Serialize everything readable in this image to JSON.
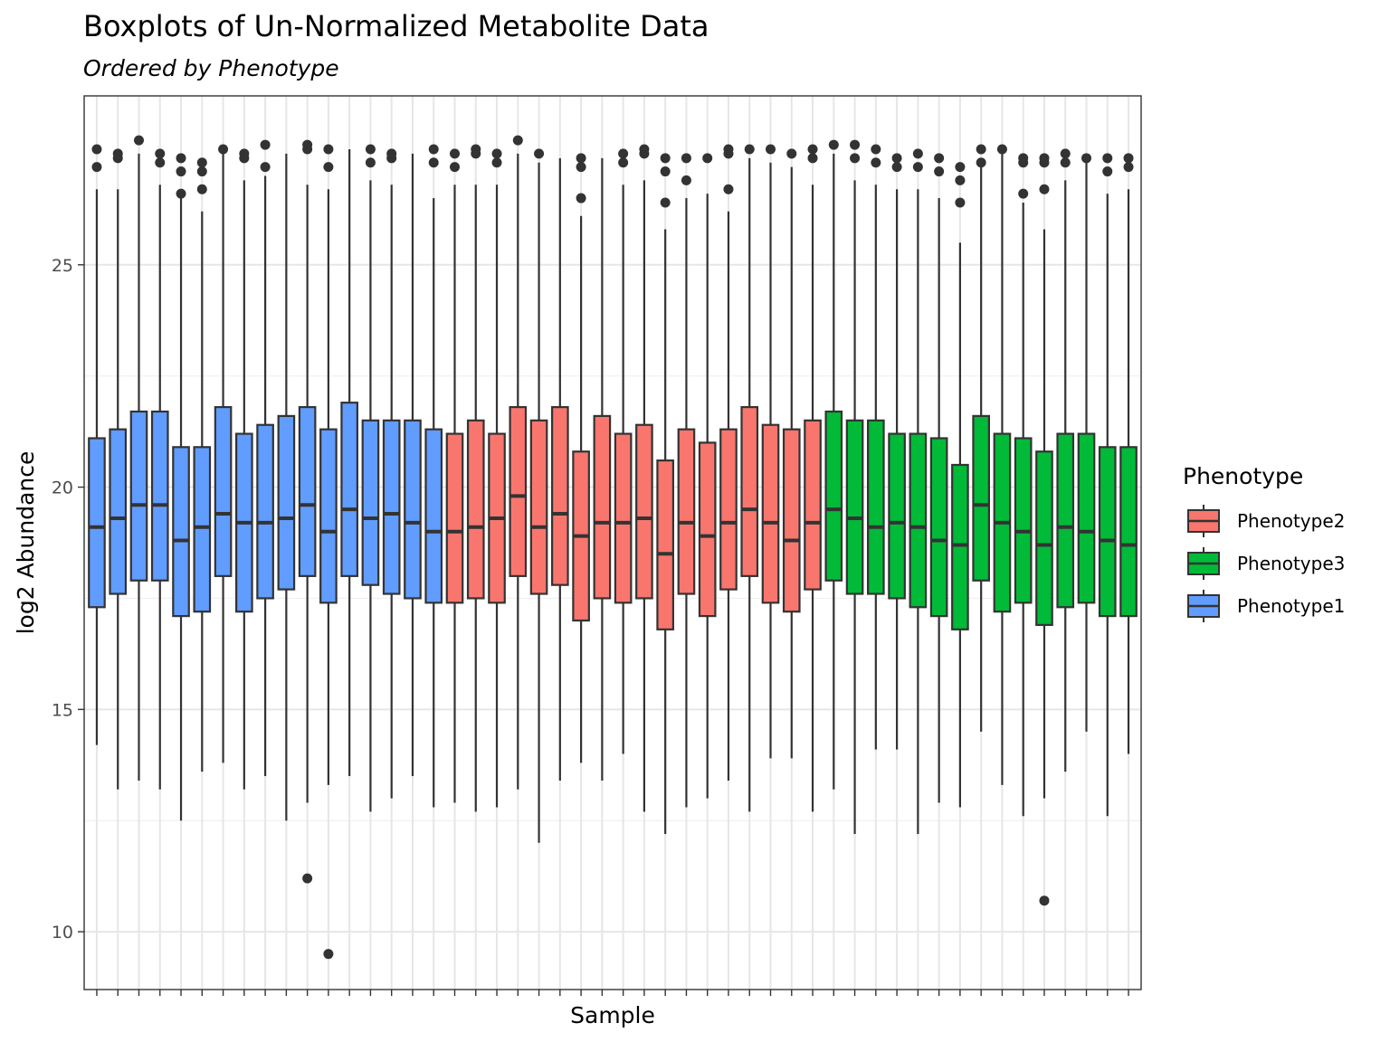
{
  "chart_data": {
    "type": "boxplot",
    "title": "Boxplots of Un-Normalized Metabolite Data",
    "subtitle": "Ordered by  Phenotype",
    "xlabel": "Sample",
    "ylabel": "log2 Abundance",
    "ylim": [
      8.7,
      28.8
    ],
    "yticks": [
      10,
      15,
      20,
      25
    ],
    "grid": true,
    "legend": {
      "title": "Phenotype",
      "position": "right",
      "entries": [
        {
          "label": "Phenotype2",
          "color": "#F8766D"
        },
        {
          "label": "Phenotype3",
          "color": "#00BA38"
        },
        {
          "label": "Phenotype1",
          "color": "#619CFF"
        }
      ]
    },
    "colors": {
      "Phenotype1": "#619CFF",
      "Phenotype2": "#F8766D",
      "Phenotype3": "#00BA38"
    },
    "boxes": [
      {
        "group": "Phenotype1",
        "whisker_low": 14.2,
        "q1": 17.3,
        "median": 19.1,
        "q3": 21.1,
        "whisker_high": 26.7,
        "outliers": [
          27.6,
          27.2
        ]
      },
      {
        "group": "Phenotype1",
        "whisker_low": 13.2,
        "q1": 17.6,
        "median": 19.3,
        "q3": 21.3,
        "whisker_high": 26.7,
        "outliers": [
          27.5,
          27.4
        ]
      },
      {
        "group": "Phenotype1",
        "whisker_low": 13.4,
        "q1": 17.9,
        "median": 19.6,
        "q3": 21.7,
        "whisker_high": 27.5,
        "outliers": [
          27.8
        ]
      },
      {
        "group": "Phenotype1",
        "whisker_low": 13.2,
        "q1": 17.9,
        "median": 19.6,
        "q3": 21.7,
        "whisker_high": 26.8,
        "outliers": [
          27.5,
          27.3
        ]
      },
      {
        "group": "Phenotype1",
        "whisker_low": 12.5,
        "q1": 17.1,
        "median": 18.8,
        "q3": 20.9,
        "whisker_high": 26.5,
        "outliers": [
          27.4,
          27.1,
          26.6
        ]
      },
      {
        "group": "Phenotype1",
        "whisker_low": 13.6,
        "q1": 17.2,
        "median": 19.1,
        "q3": 20.9,
        "whisker_high": 26.2,
        "outliers": [
          27.3,
          27.1,
          26.7
        ]
      },
      {
        "group": "Phenotype1",
        "whisker_low": 13.8,
        "q1": 18.0,
        "median": 19.4,
        "q3": 21.8,
        "whisker_high": 27.5,
        "outliers": [
          27.6
        ]
      },
      {
        "group": "Phenotype1",
        "whisker_low": 13.2,
        "q1": 17.2,
        "median": 19.2,
        "q3": 21.2,
        "whisker_high": 26.9,
        "outliers": [
          27.5,
          27.4
        ]
      },
      {
        "group": "Phenotype1",
        "whisker_low": 13.5,
        "q1": 17.5,
        "median": 19.2,
        "q3": 21.4,
        "whisker_high": 27.0,
        "outliers": [
          27.7,
          27.2
        ]
      },
      {
        "group": "Phenotype1",
        "whisker_low": 12.5,
        "q1": 17.7,
        "median": 19.3,
        "q3": 21.6,
        "whisker_high": 27.5,
        "outliers": []
      },
      {
        "group": "Phenotype1",
        "whisker_low": 12.9,
        "q1": 18.0,
        "median": 19.6,
        "q3": 21.8,
        "whisker_high": 26.8,
        "outliers": [
          27.7,
          27.6,
          11.2
        ]
      },
      {
        "group": "Phenotype1",
        "whisker_low": 13.3,
        "q1": 17.4,
        "median": 19.0,
        "q3": 21.3,
        "whisker_high": 26.7,
        "outliers": [
          27.6,
          27.2,
          9.5
        ]
      },
      {
        "group": "Phenotype1",
        "whisker_low": 13.5,
        "q1": 18.0,
        "median": 19.5,
        "q3": 21.9,
        "whisker_high": 27.6,
        "outliers": []
      },
      {
        "group": "Phenotype1",
        "whisker_low": 12.7,
        "q1": 17.8,
        "median": 19.3,
        "q3": 21.5,
        "whisker_high": 26.9,
        "outliers": [
          27.6,
          27.3
        ]
      },
      {
        "group": "Phenotype1",
        "whisker_low": 13.0,
        "q1": 17.6,
        "median": 19.4,
        "q3": 21.5,
        "whisker_high": 26.8,
        "outliers": [
          27.5,
          27.4
        ]
      },
      {
        "group": "Phenotype1",
        "whisker_low": 13.5,
        "q1": 17.5,
        "median": 19.2,
        "q3": 21.5,
        "whisker_high": 27.5,
        "outliers": []
      },
      {
        "group": "Phenotype1",
        "whisker_low": 12.8,
        "q1": 17.4,
        "median": 19.0,
        "q3": 21.3,
        "whisker_high": 26.5,
        "outliers": [
          27.6,
          27.3
        ]
      },
      {
        "group": "Phenotype2",
        "whisker_low": 12.9,
        "q1": 17.4,
        "median": 19.0,
        "q3": 21.2,
        "whisker_high": 26.8,
        "outliers": [
          27.5,
          27.2
        ]
      },
      {
        "group": "Phenotype2",
        "whisker_low": 12.7,
        "q1": 17.5,
        "median": 19.1,
        "q3": 21.5,
        "whisker_high": 26.8,
        "outliers": [
          27.6,
          27.5
        ]
      },
      {
        "group": "Phenotype2",
        "whisker_low": 12.8,
        "q1": 17.4,
        "median": 19.3,
        "q3": 21.2,
        "whisker_high": 26.8,
        "outliers": [
          27.5,
          27.3
        ]
      },
      {
        "group": "Phenotype2",
        "whisker_low": 13.2,
        "q1": 18.0,
        "median": 19.8,
        "q3": 21.8,
        "whisker_high": 27.5,
        "outliers": [
          27.8
        ]
      },
      {
        "group": "Phenotype2",
        "whisker_low": 12.0,
        "q1": 17.6,
        "median": 19.1,
        "q3": 21.5,
        "whisker_high": 27.3,
        "outliers": [
          27.5
        ]
      },
      {
        "group": "Phenotype2",
        "whisker_low": 13.4,
        "q1": 17.8,
        "median": 19.4,
        "q3": 21.8,
        "whisker_high": 27.4,
        "outliers": []
      },
      {
        "group": "Phenotype2",
        "whisker_low": 13.8,
        "q1": 17.0,
        "median": 18.9,
        "q3": 20.8,
        "whisker_high": 26.1,
        "outliers": [
          27.4,
          27.2,
          26.5
        ]
      },
      {
        "group": "Phenotype2",
        "whisker_low": 13.4,
        "q1": 17.5,
        "median": 19.2,
        "q3": 21.6,
        "whisker_high": 27.4,
        "outliers": []
      },
      {
        "group": "Phenotype2",
        "whisker_low": 14.0,
        "q1": 17.4,
        "median": 19.2,
        "q3": 21.2,
        "whisker_high": 26.8,
        "outliers": [
          27.5,
          27.3
        ]
      },
      {
        "group": "Phenotype2",
        "whisker_low": 12.7,
        "q1": 17.5,
        "median": 19.3,
        "q3": 21.4,
        "whisker_high": 26.9,
        "outliers": [
          27.6,
          27.5
        ]
      },
      {
        "group": "Phenotype2",
        "whisker_low": 12.2,
        "q1": 16.8,
        "median": 18.5,
        "q3": 20.6,
        "whisker_high": 25.8,
        "outliers": [
          27.4,
          27.1,
          26.4
        ]
      },
      {
        "group": "Phenotype2",
        "whisker_low": 12.8,
        "q1": 17.6,
        "median": 19.2,
        "q3": 21.3,
        "whisker_high": 26.5,
        "outliers": [
          27.4,
          26.9
        ]
      },
      {
        "group": "Phenotype2",
        "whisker_low": 13.0,
        "q1": 17.1,
        "median": 18.9,
        "q3": 21.0,
        "whisker_high": 26.6,
        "outliers": [
          27.4
        ]
      },
      {
        "group": "Phenotype2",
        "whisker_low": 13.4,
        "q1": 17.7,
        "median": 19.2,
        "q3": 21.3,
        "whisker_high": 26.2,
        "outliers": [
          27.6,
          27.5,
          26.7
        ]
      },
      {
        "group": "Phenotype2",
        "whisker_low": 12.7,
        "q1": 18.0,
        "median": 19.5,
        "q3": 21.8,
        "whisker_high": 27.4,
        "outliers": [
          27.6
        ]
      },
      {
        "group": "Phenotype2",
        "whisker_low": 13.9,
        "q1": 17.4,
        "median": 19.2,
        "q3": 21.4,
        "whisker_high": 27.3,
        "outliers": [
          27.6
        ]
      },
      {
        "group": "Phenotype2",
        "whisker_low": 13.9,
        "q1": 17.2,
        "median": 18.8,
        "q3": 21.3,
        "whisker_high": 27.2,
        "outliers": [
          27.5
        ]
      },
      {
        "group": "Phenotype2",
        "whisker_low": 12.7,
        "q1": 17.7,
        "median": 19.2,
        "q3": 21.5,
        "whisker_high": 26.8,
        "outliers": [
          27.6,
          27.4
        ]
      },
      {
        "group": "Phenotype3",
        "whisker_low": 13.2,
        "q1": 17.9,
        "median": 19.5,
        "q3": 21.7,
        "whisker_high": 27.5,
        "outliers": [
          27.7
        ]
      },
      {
        "group": "Phenotype3",
        "whisker_low": 12.2,
        "q1": 17.6,
        "median": 19.3,
        "q3": 21.5,
        "whisker_high": 26.9,
        "outliers": [
          27.7,
          27.4
        ]
      },
      {
        "group": "Phenotype3",
        "whisker_low": 14.1,
        "q1": 17.6,
        "median": 19.1,
        "q3": 21.5,
        "whisker_high": 26.8,
        "outliers": [
          27.6,
          27.3
        ]
      },
      {
        "group": "Phenotype3",
        "whisker_low": 14.1,
        "q1": 17.5,
        "median": 19.2,
        "q3": 21.2,
        "whisker_high": 26.7,
        "outliers": [
          27.4,
          27.2
        ]
      },
      {
        "group": "Phenotype3",
        "whisker_low": 12.2,
        "q1": 17.3,
        "median": 19.1,
        "q3": 21.2,
        "whisker_high": 26.7,
        "outliers": [
          27.5,
          27.2
        ]
      },
      {
        "group": "Phenotype3",
        "whisker_low": 12.9,
        "q1": 17.1,
        "median": 18.8,
        "q3": 21.1,
        "whisker_high": 26.5,
        "outliers": [
          27.4,
          27.1
        ]
      },
      {
        "group": "Phenotype3",
        "whisker_low": 12.8,
        "q1": 16.8,
        "median": 18.7,
        "q3": 20.5,
        "whisker_high": 25.5,
        "outliers": [
          27.2,
          26.9,
          26.4
        ]
      },
      {
        "group": "Phenotype3",
        "whisker_low": 14.5,
        "q1": 17.9,
        "median": 19.6,
        "q3": 21.6,
        "whisker_high": 27.3,
        "outliers": [
          27.6,
          27.3
        ]
      },
      {
        "group": "Phenotype3",
        "whisker_low": 13.3,
        "q1": 17.2,
        "median": 19.2,
        "q3": 21.2,
        "whisker_high": 27.5,
        "outliers": [
          27.6
        ]
      },
      {
        "group": "Phenotype3",
        "whisker_low": 12.6,
        "q1": 17.4,
        "median": 19.0,
        "q3": 21.1,
        "whisker_high": 26.4,
        "outliers": [
          27.4,
          27.3,
          26.6
        ]
      },
      {
        "group": "Phenotype3",
        "whisker_low": 13.0,
        "q1": 16.9,
        "median": 18.7,
        "q3": 20.8,
        "whisker_high": 25.8,
        "outliers": [
          27.4,
          27.3,
          26.7,
          10.7
        ]
      },
      {
        "group": "Phenotype3",
        "whisker_low": 13.6,
        "q1": 17.3,
        "median": 19.1,
        "q3": 21.2,
        "whisker_high": 26.9,
        "outliers": [
          27.5,
          27.3
        ]
      },
      {
        "group": "Phenotype3",
        "whisker_low": 14.5,
        "q1": 17.4,
        "median": 19.0,
        "q3": 21.2,
        "whisker_high": 27.3,
        "outliers": [
          27.4
        ]
      },
      {
        "group": "Phenotype3",
        "whisker_low": 12.6,
        "q1": 17.1,
        "median": 18.8,
        "q3": 20.9,
        "whisker_high": 26.6,
        "outliers": [
          27.4,
          27.1
        ]
      },
      {
        "group": "Phenotype3",
        "whisker_low": 14.0,
        "q1": 17.1,
        "median": 18.7,
        "q3": 20.9,
        "whisker_high": 26.7,
        "outliers": [
          27.4,
          27.2
        ]
      }
    ]
  }
}
